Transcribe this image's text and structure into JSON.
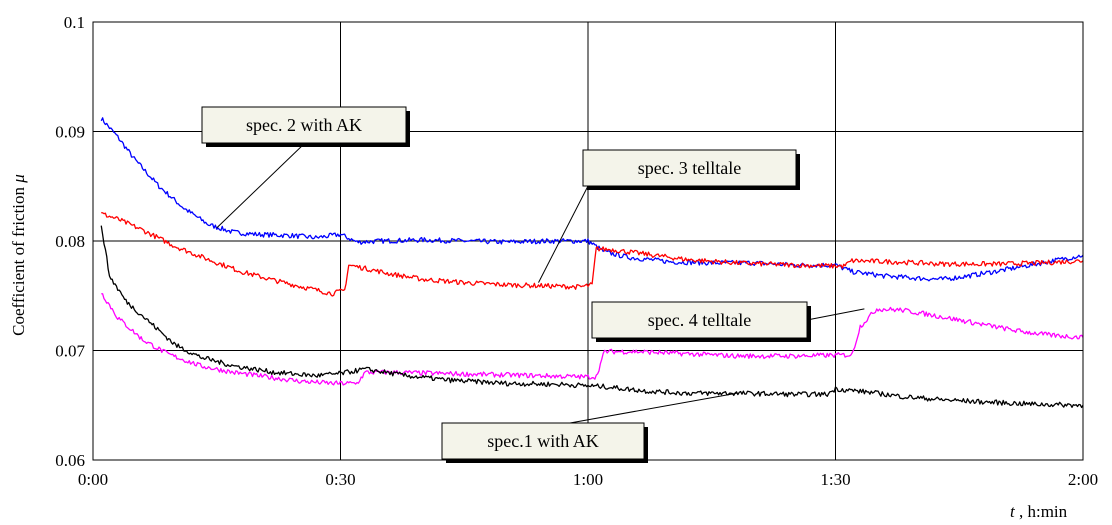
{
  "chart_data": {
    "type": "line",
    "ylabel": "Coefficient of friction",
    "ylabel_symbol": "μ",
    "xlabel_symbol": "t",
    "xlabel_unit": ", h:min",
    "x_unit": "minutes",
    "xlim": [
      0,
      120
    ],
    "ylim": [
      0.06,
      0.1
    ],
    "x_ticks": [
      {
        "value": 0,
        "label": "0:00"
      },
      {
        "value": 30,
        "label": "0:30"
      },
      {
        "value": 60,
        "label": "1:00"
      },
      {
        "value": 90,
        "label": "1:30"
      },
      {
        "value": 120,
        "label": "2:00"
      }
    ],
    "y_ticks": [
      {
        "value": 0.06,
        "label": "0.06"
      },
      {
        "value": 0.07,
        "label": "0.07"
      },
      {
        "value": 0.08,
        "label": "0.08"
      },
      {
        "value": 0.09,
        "label": "0.09"
      },
      {
        "value": 0.1,
        "label": "0.1"
      }
    ],
    "grid": true,
    "series": [
      {
        "name": "spec. 2 with AK",
        "color": "#0000ff",
        "points": [
          [
            1,
            0.0912
          ],
          [
            3,
            0.0895
          ],
          [
            5,
            0.0875
          ],
          [
            8,
            0.085
          ],
          [
            11,
            0.083
          ],
          [
            14,
            0.0815
          ],
          [
            17,
            0.0808
          ],
          [
            20,
            0.0806
          ],
          [
            24,
            0.0805
          ],
          [
            27,
            0.0803
          ],
          [
            30,
            0.0806
          ],
          [
            32,
            0.0799
          ],
          [
            35,
            0.08
          ],
          [
            40,
            0.0801
          ],
          [
            45,
            0.08
          ],
          [
            50,
            0.0799
          ],
          [
            55,
            0.08
          ],
          [
            60,
            0.08
          ],
          [
            62,
            0.079
          ],
          [
            65,
            0.0785
          ],
          [
            70,
            0.0781
          ],
          [
            75,
            0.078
          ],
          [
            80,
            0.078
          ],
          [
            85,
            0.0778
          ],
          [
            90,
            0.0778
          ],
          [
            92,
            0.0772
          ],
          [
            96,
            0.0768
          ],
          [
            100,
            0.0766
          ],
          [
            103,
            0.0765
          ],
          [
            106,
            0.0768
          ],
          [
            110,
            0.0773
          ],
          [
            115,
            0.078
          ],
          [
            120,
            0.0787
          ]
        ]
      },
      {
        "name": "spec. 3 telltale",
        "color": "#ff0000",
        "points": [
          [
            1,
            0.0825
          ],
          [
            3,
            0.082
          ],
          [
            6,
            0.081
          ],
          [
            10,
            0.0795
          ],
          [
            14,
            0.0783
          ],
          [
            18,
            0.0772
          ],
          [
            22,
            0.0764
          ],
          [
            26,
            0.0757
          ],
          [
            29,
            0.0752
          ],
          [
            30.5,
            0.0755
          ],
          [
            31,
            0.0778
          ],
          [
            33,
            0.0775
          ],
          [
            36,
            0.077
          ],
          [
            40,
            0.0765
          ],
          [
            45,
            0.0762
          ],
          [
            50,
            0.076
          ],
          [
            55,
            0.0759
          ],
          [
            59,
            0.0758
          ],
          [
            60.5,
            0.076
          ],
          [
            61,
            0.0793
          ],
          [
            63,
            0.0792
          ],
          [
            67,
            0.0788
          ],
          [
            72,
            0.0783
          ],
          [
            78,
            0.078
          ],
          [
            85,
            0.0778
          ],
          [
            91,
            0.0777
          ],
          [
            92,
            0.0782
          ],
          [
            97,
            0.0781
          ],
          [
            103,
            0.0779
          ],
          [
            110,
            0.0779
          ],
          [
            115,
            0.078
          ],
          [
            120,
            0.0782
          ]
        ]
      },
      {
        "name": "spec. 4 telltale",
        "color": "#ff00ff",
        "points": [
          [
            1,
            0.0753
          ],
          [
            3,
            0.073
          ],
          [
            6,
            0.071
          ],
          [
            9,
            0.0697
          ],
          [
            13,
            0.0686
          ],
          [
            17,
            0.068
          ],
          [
            21,
            0.0676
          ],
          [
            25,
            0.0672
          ],
          [
            29,
            0.067
          ],
          [
            32,
            0.067
          ],
          [
            33,
            0.068
          ],
          [
            37,
            0.068
          ],
          [
            42,
            0.0679
          ],
          [
            48,
            0.0678
          ],
          [
            54,
            0.0677
          ],
          [
            59,
            0.0676
          ],
          [
            61,
            0.0676
          ],
          [
            62,
            0.0699
          ],
          [
            66,
            0.0699
          ],
          [
            72,
            0.0697
          ],
          [
            78,
            0.0695
          ],
          [
            85,
            0.0695
          ],
          [
            92,
            0.0696
          ],
          [
            93,
            0.0722
          ],
          [
            95,
            0.0738
          ],
          [
            98,
            0.0737
          ],
          [
            102,
            0.0732
          ],
          [
            107,
            0.0725
          ],
          [
            112,
            0.0718
          ],
          [
            116,
            0.0714
          ],
          [
            120,
            0.0712
          ]
        ]
      },
      {
        "name": "spec.1 with AK",
        "color": "#000000",
        "points": [
          [
            1,
            0.0815
          ],
          [
            2,
            0.0768
          ],
          [
            4,
            0.0745
          ],
          [
            7,
            0.0725
          ],
          [
            10,
            0.0705
          ],
          [
            13,
            0.0694
          ],
          [
            17,
            0.0686
          ],
          [
            22,
            0.068
          ],
          [
            27,
            0.0677
          ],
          [
            30,
            0.0679
          ],
          [
            33,
            0.0683
          ],
          [
            38,
            0.0677
          ],
          [
            43,
            0.0673
          ],
          [
            50,
            0.067
          ],
          [
            57,
            0.0669
          ],
          [
            62,
            0.0667
          ],
          [
            67,
            0.0663
          ],
          [
            72,
            0.0661
          ],
          [
            78,
            0.0661
          ],
          [
            85,
            0.066
          ],
          [
            89,
            0.066
          ],
          [
            90,
            0.0665
          ],
          [
            94,
            0.0662
          ],
          [
            98,
            0.0658
          ],
          [
            103,
            0.0655
          ],
          [
            108,
            0.0653
          ],
          [
            114,
            0.0651
          ],
          [
            120,
            0.065
          ]
        ]
      }
    ],
    "annotations": [
      {
        "text": "spec. 2 with AK",
        "series_index": 0,
        "target_x": 15,
        "target_y": 0.0812
      },
      {
        "text": "spec. 3 telltale",
        "series_index": 1,
        "target_x": 54,
        "target_y": 0.0762
      },
      {
        "text": "spec. 4 telltale",
        "series_index": 2,
        "target_x": 93.5,
        "target_y": 0.0738
      },
      {
        "text": "spec.1 with AK",
        "series_index": 3,
        "target_x": 78,
        "target_y": 0.0661
      }
    ]
  }
}
